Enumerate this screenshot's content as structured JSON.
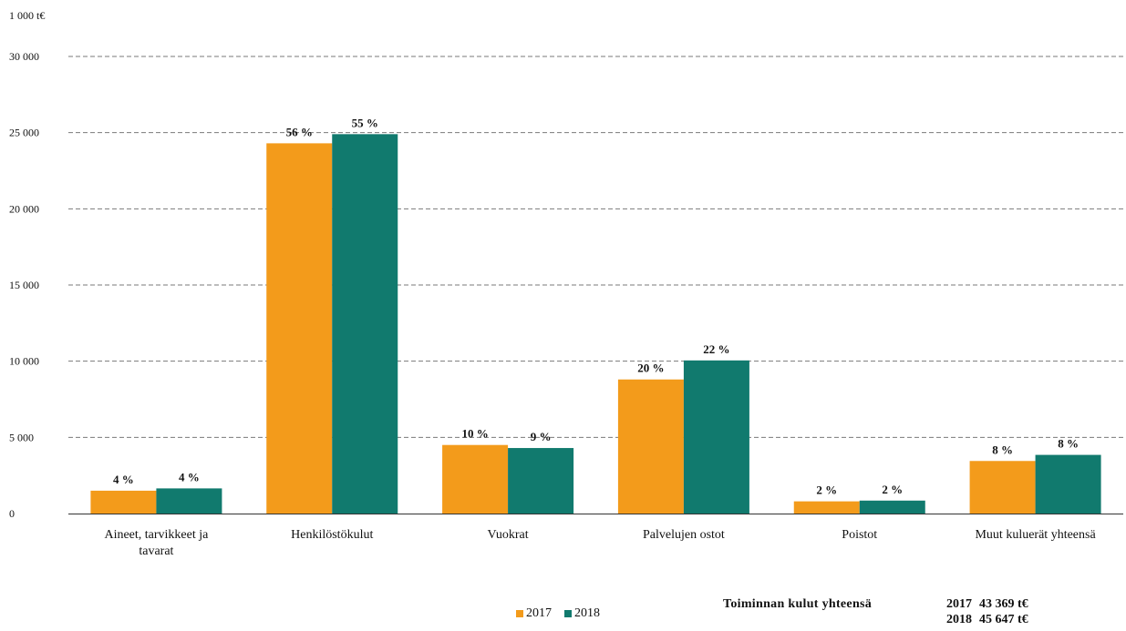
{
  "chart_data": {
    "type": "bar",
    "unit_label": "1 000 t€",
    "categories": [
      "Aineet, tarvikkeet ja tavarat",
      "Henkilöstökulut",
      "Vuokrat",
      "Palvelujen ostot",
      "Poistot",
      "Muut kuluerät yhteensä"
    ],
    "series": [
      {
        "name": "2017",
        "color": "#f39b1b",
        "values": [
          1500,
          24300,
          4500,
          8800,
          800,
          3450
        ],
        "labels": [
          "4 %",
          "56 %",
          "10 %",
          "20 %",
          "2 %",
          "8 %"
        ]
      },
      {
        "name": "2018",
        "color": "#117a6e",
        "values": [
          1650,
          24900,
          4300,
          10050,
          850,
          3850
        ],
        "labels": [
          "4 %",
          "55 %",
          "9 %",
          "22 %",
          "2 %",
          "8 %"
        ]
      }
    ],
    "ylim": [
      0,
      30000
    ],
    "yticks": [
      0,
      5000,
      10000,
      15000,
      20000,
      25000,
      30000
    ],
    "ytick_labels": [
      "0",
      "5 000",
      "10 000",
      "15 000",
      "20 000",
      "25 000",
      "30 000"
    ],
    "grid": true,
    "legend_position": "bottom"
  },
  "totals": {
    "label": "Toiminnan kulut yhteensä",
    "rows": [
      {
        "year": "2017",
        "value": "43 369 t€"
      },
      {
        "year": "2018",
        "value": "45 647 t€"
      }
    ]
  }
}
